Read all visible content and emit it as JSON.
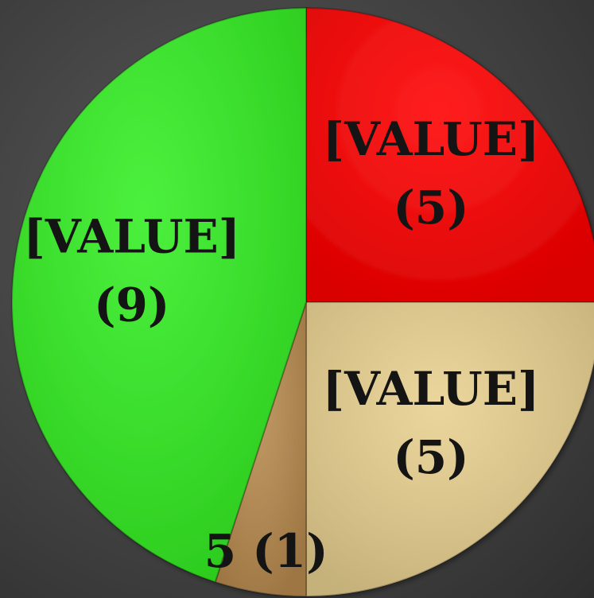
{
  "chart_data": {
    "type": "pie",
    "values": [
      5,
      5,
      1,
      9
    ],
    "value_labels": [
      [
        "[VALUE]",
        "(5)"
      ],
      [
        "[VALUE]",
        "(5)"
      ],
      [
        "5 (1)"
      ],
      [
        "[VALUE]",
        "(9)"
      ]
    ],
    "colors": [
      "#ff0000",
      "#e8d08f",
      "#b98b4f",
      "#33ee22"
    ],
    "start_angle": 0,
    "direction": "clockwise"
  }
}
